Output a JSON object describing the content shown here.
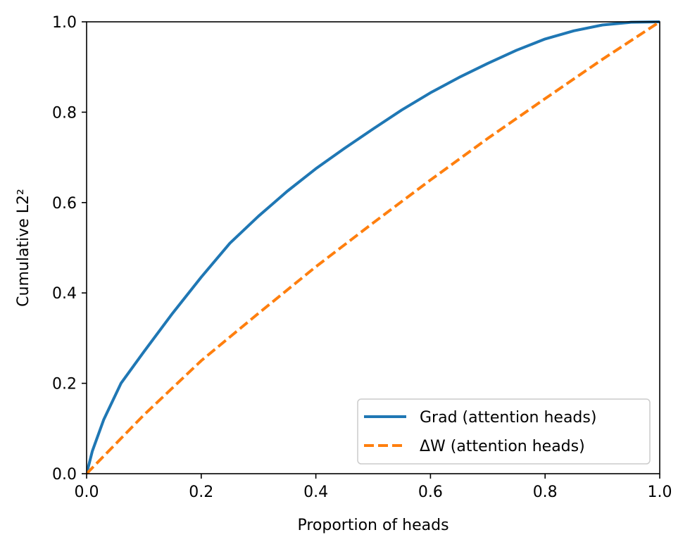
{
  "chart_data": {
    "type": "line",
    "title": "",
    "xlabel": "Proportion of heads",
    "ylabel": "Cumulative L2²",
    "xlim": [
      0.0,
      1.0
    ],
    "ylim": [
      0.0,
      1.0
    ],
    "xticks": [
      "0.0",
      "0.2",
      "0.4",
      "0.6",
      "0.8",
      "1.0"
    ],
    "yticks": [
      "0.0",
      "0.2",
      "0.4",
      "0.6",
      "0.8",
      "1.0"
    ],
    "grid": false,
    "legend_position": "lower-right",
    "series": [
      {
        "name": "Grad (attention heads)",
        "color": "#1f77b4",
        "style": "solid",
        "x": [
          0.0,
          0.01,
          0.03,
          0.06,
          0.1,
          0.15,
          0.2,
          0.25,
          0.3,
          0.35,
          0.4,
          0.45,
          0.5,
          0.55,
          0.6,
          0.65,
          0.7,
          0.75,
          0.8,
          0.85,
          0.9,
          0.95,
          1.0
        ],
        "y": [
          0.0,
          0.05,
          0.12,
          0.2,
          0.27,
          0.355,
          0.435,
          0.51,
          0.57,
          0.625,
          0.675,
          0.72,
          0.763,
          0.805,
          0.843,
          0.877,
          0.908,
          0.937,
          0.962,
          0.98,
          0.993,
          0.999,
          1.0
        ]
      },
      {
        "name": "ΔW (attention heads)",
        "color": "#ff7f0e",
        "style": "dashed",
        "x": [
          0.0,
          0.1,
          0.2,
          0.3,
          0.4,
          0.5,
          0.6,
          0.7,
          0.8,
          0.9,
          1.0
        ],
        "y": [
          0.0,
          0.13,
          0.25,
          0.355,
          0.458,
          0.555,
          0.65,
          0.742,
          0.83,
          0.917,
          1.0
        ]
      }
    ]
  }
}
